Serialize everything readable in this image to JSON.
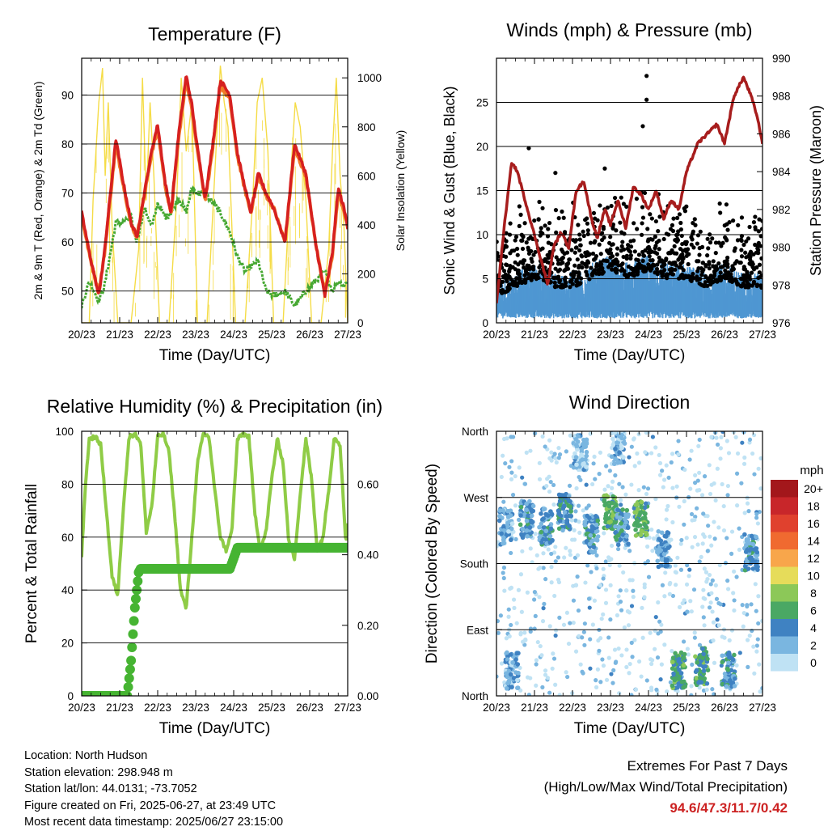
{
  "day_ticks": [
    "20/23",
    "21/23",
    "22/23",
    "23/23",
    "24/23",
    "25/23",
    "26/23",
    "27/23"
  ],
  "chart_data": [
    {
      "id": "temperature",
      "type": "line",
      "title": "Temperature (F)",
      "xlabel": "Time (Day/UTC)",
      "ylabel": "2m & 9m T (Red, Orange) & 2m Td (Green)",
      "y2label": "Solar Insolation (Yellow)",
      "ylim": [
        43.5,
        97.5
      ],
      "yticks": [
        50,
        60,
        70,
        80,
        90
      ],
      "y2lim": [
        0,
        1080
      ],
      "y2ticks": [
        0,
        200,
        400,
        600,
        800,
        1000
      ],
      "x": [
        0,
        0.2,
        0.45,
        0.6,
        0.9,
        1.1,
        1.3,
        1.45,
        1.65,
        1.85,
        2.0,
        2.2,
        2.35,
        2.55,
        2.75,
        2.9,
        3.05,
        3.25,
        3.45,
        3.65,
        3.9,
        4.1,
        4.3,
        4.45,
        4.65,
        4.85,
        5.05,
        5.35,
        5.6,
        5.9,
        6.15,
        6.4,
        6.6,
        6.75,
        6.9,
        7.0
      ],
      "series": [
        {
          "name": "2m T",
          "color": "#d62020",
          "values": [
            66,
            58,
            49,
            58,
            81,
            72,
            64,
            61,
            70,
            79,
            84,
            72,
            66,
            82,
            94,
            88,
            79,
            69,
            80,
            93,
            90,
            78,
            71,
            66,
            74,
            70,
            67,
            60,
            80,
            74,
            60,
            49,
            58,
            71,
            67,
            63
          ]
        },
        {
          "name": "9m T",
          "color": "#f07a28",
          "values": [
            65.5,
            57.5,
            49.5,
            57.5,
            80,
            71.5,
            63.5,
            61,
            69.5,
            78.5,
            83,
            71.5,
            65.5,
            81,
            93,
            87,
            78.5,
            68.5,
            79,
            92,
            89,
            77.5,
            70.5,
            66,
            73.5,
            69.5,
            67,
            60,
            79,
            73.5,
            60,
            49.5,
            57.5,
            70,
            66.5,
            63
          ]
        },
        {
          "name": "2m Td",
          "color": "#46a832",
          "values": [
            47,
            52,
            48,
            51,
            64,
            64,
            65,
            60,
            67,
            63,
            68,
            65,
            66,
            69,
            66,
            71,
            70,
            70,
            68,
            66,
            62,
            57,
            54,
            55,
            56,
            50,
            49,
            50,
            47,
            50,
            52,
            54,
            50,
            52,
            51,
            52
          ]
        },
        {
          "name": "Solar Insolation",
          "color": "#f5dc46",
          "axis": "y2",
          "x": [
            0,
            0.2,
            0.3,
            0.45,
            0.55,
            0.62,
            0.7,
            0.8,
            0.95,
            1.05,
            1.3,
            1.5,
            1.6,
            1.7,
            1.8,
            1.9,
            2.05,
            2.3,
            2.5,
            2.62,
            2.75,
            2.9,
            3.05,
            3.3,
            3.5,
            3.65,
            3.75,
            3.85,
            4.05,
            4.3,
            4.5,
            4.62,
            4.75,
            4.9,
            5.05,
            5.3,
            5.5,
            5.62,
            5.75,
            5.9,
            6.05,
            6.3,
            6.5,
            6.6,
            6.7,
            6.8,
            6.9,
            7.0
          ],
          "values": [
            0,
            0,
            500,
            900,
            1040,
            600,
            900,
            400,
            0,
            0,
            0,
            300,
            1000,
            500,
            900,
            600,
            0,
            0,
            500,
            1000,
            700,
            900,
            0,
            0,
            600,
            1050,
            900,
            800,
            0,
            0,
            500,
            900,
            1000,
            700,
            0,
            0,
            600,
            900,
            800,
            500,
            0,
            0,
            300,
            700,
            1000,
            600,
            400,
            0
          ]
        }
      ]
    },
    {
      "id": "winds",
      "type": "scatter",
      "title": "Winds (mph) & Pressure (mb)",
      "xlabel": "Time (Day/UTC)",
      "ylabel": "Sonic Wind & Gust (Blue, Black)",
      "y2label": "Station Pressure (Maroon)",
      "ylim": [
        0,
        30
      ],
      "yticks": [
        0,
        5,
        10,
        15,
        20,
        25
      ],
      "y2lim": [
        976,
        990
      ],
      "y2ticks": [
        976,
        978,
        980,
        982,
        984,
        986,
        988,
        990
      ],
      "wind_color": "#4f97d2",
      "gust_color": "#000000",
      "pressure": {
        "color": "#a71d1d",
        "x": [
          0,
          0.2,
          0.4,
          0.55,
          0.75,
          0.95,
          1.15,
          1.35,
          1.5,
          1.7,
          1.9,
          2.1,
          2.3,
          2.5,
          2.65,
          2.85,
          3.0,
          3.2,
          3.4,
          3.6,
          3.8,
          4.0,
          4.2,
          4.4,
          4.6,
          4.8,
          5.0,
          5.3,
          5.55,
          5.8,
          6.0,
          6.25,
          6.5,
          6.7,
          6.85,
          7.0
        ],
        "values": [
          977,
          981,
          984.5,
          984,
          982.5,
          981,
          979.5,
          978,
          980,
          980.8,
          980,
          983,
          983.5,
          981.5,
          980.5,
          982,
          981.2,
          982.5,
          981,
          983.2,
          982.8,
          982,
          983,
          981.5,
          982.5,
          982,
          984,
          985.5,
          986,
          986.5,
          985.5,
          988,
          989,
          988,
          987,
          985.5
        ]
      },
      "wind_mean": {
        "x": [
          0,
          0.5,
          1.0,
          1.5,
          2.0,
          2.5,
          3.0,
          3.5,
          4.0,
          4.5,
          5.0,
          5.5,
          6.0,
          6.5,
          7.0
        ],
        "values": [
          2,
          3,
          4,
          3,
          3,
          4,
          5,
          4,
          5,
          4,
          4,
          3,
          4,
          3,
          3
        ]
      },
      "gust_peaks": [
        {
          "x": 3.95,
          "y": 28.0
        },
        {
          "x": 3.95,
          "y": 25.3
        },
        {
          "x": 3.85,
          "y": 22.3
        },
        {
          "x": 0.85,
          "y": 19.8
        },
        {
          "x": 1.55,
          "y": 17.0
        },
        {
          "x": 2.85,
          "y": 17.5
        }
      ]
    },
    {
      "id": "humidity",
      "type": "line",
      "title": "Relative Humidity (%) & Precipitation (in)",
      "xlabel": "Time (Day/UTC)",
      "ylabel": "Percent & Total Rainfall",
      "ylim": [
        0,
        100
      ],
      "yticks": [
        0,
        20,
        40,
        60,
        80,
        100
      ],
      "y2lim": [
        0,
        0.75
      ],
      "y2ticks": [
        "0.00",
        "0.20",
        "0.40",
        "0.60"
      ],
      "y2tick_values": [
        0,
        0.2,
        0.4,
        0.6
      ],
      "series": [
        {
          "name": "Relative Humidity",
          "color": "#8fcc46",
          "x": [
            0,
            0.1,
            0.2,
            0.35,
            0.5,
            0.65,
            0.8,
            0.95,
            1.1,
            1.25,
            1.4,
            1.55,
            1.7,
            1.85,
            2.0,
            2.15,
            2.3,
            2.45,
            2.6,
            2.75,
            2.9,
            3.05,
            3.2,
            3.35,
            3.5,
            3.65,
            3.8,
            3.95,
            4.1,
            4.25,
            4.4,
            4.55,
            4.7,
            4.85,
            5.0,
            5.15,
            5.3,
            5.45,
            5.6,
            5.75,
            5.9,
            6.05,
            6.2,
            6.35,
            6.5,
            6.65,
            6.8,
            6.95,
            7.0
          ],
          "values": [
            53,
            80,
            97,
            98,
            95,
            70,
            45,
            38,
            72,
            98,
            99,
            96,
            62,
            72,
            98,
            99,
            92,
            68,
            40,
            33,
            60,
            88,
            99,
            98,
            78,
            60,
            55,
            62,
            97,
            99,
            98,
            70,
            55,
            62,
            82,
            97,
            88,
            58,
            52,
            76,
            97,
            82,
            55,
            60,
            78,
            98,
            95,
            58,
            65
          ]
        },
        {
          "name": "Total Precipitation",
          "color": "#46b432",
          "axis": "y2",
          "x": [
            0,
            1.2,
            1.3,
            1.4,
            1.5,
            1.55,
            1.7,
            3.9,
            4.0,
            4.1,
            5.0,
            7.0
          ],
          "values": [
            0,
            0,
            0.1,
            0.25,
            0.35,
            0.36,
            0.36,
            0.36,
            0.39,
            0.42,
            0.42,
            0.42
          ]
        }
      ]
    },
    {
      "id": "wind_direction",
      "type": "scatter",
      "title": "Wind Direction",
      "xlabel": "Time (Day/UTC)",
      "ylabel": "Direction (Colored By Speed)",
      "yticks": [
        "North",
        "East",
        "South",
        "West",
        "North"
      ],
      "ytick_values": [
        0,
        90,
        180,
        270,
        360
      ],
      "ylim": [
        0,
        360
      ],
      "colorbar": {
        "unit": "mph",
        "labels": [
          "20+",
          "18",
          "16",
          "14",
          "12",
          "10",
          "8",
          "6",
          "4",
          "2",
          "0"
        ],
        "colors": [
          "#a3171b",
          "#c8262a",
          "#e0412e",
          "#f06a30",
          "#f8a64b",
          "#e6dc5a",
          "#8cc858",
          "#4aa864",
          "#3f82c2",
          "#7ab6e0",
          "#bfe2f4"
        ]
      },
      "clusters": [
        {
          "t": 0.25,
          "dir": 230,
          "speed": 3
        },
        {
          "t": 0.8,
          "dir": 240,
          "speed": 4
        },
        {
          "t": 1.3,
          "dir": 230,
          "speed": 4
        },
        {
          "t": 1.8,
          "dir": 250,
          "speed": 5
        },
        {
          "t": 2.5,
          "dir": 220,
          "speed": 4
        },
        {
          "t": 3.0,
          "dir": 250,
          "speed": 7
        },
        {
          "t": 3.3,
          "dir": 230,
          "speed": 4
        },
        {
          "t": 3.8,
          "dir": 240,
          "speed": 7
        },
        {
          "t": 4.4,
          "dir": 200,
          "speed": 3
        },
        {
          "t": 4.8,
          "dir": 35,
          "speed": 6
        },
        {
          "t": 5.4,
          "dir": 40,
          "speed": 6
        },
        {
          "t": 6.1,
          "dir": 35,
          "speed": 4
        },
        {
          "t": 6.7,
          "dir": 195,
          "speed": 4
        },
        {
          "t": 0.4,
          "dir": 35,
          "speed": 3
        },
        {
          "t": 2.2,
          "dir": 330,
          "speed": 2
        },
        {
          "t": 3.2,
          "dir": 340,
          "speed": 2
        }
      ]
    }
  ],
  "footer": {
    "location": "Location: North Hudson",
    "elevation": "Station elevation: 298.948 m",
    "latlon": "Station lat/lon: 44.0131; -73.7052",
    "created": "Figure created on Fri, 2025-06-27, at 23:49 UTC",
    "latest": "Most recent data timestamp: 2025/06/27 23:15:00"
  },
  "extremes": {
    "title": "Extremes For Past 7 Days",
    "subtitle": "(High/Low/Max Wind/Total Precipitation)",
    "values": "94.6/47.3/11.7/0.42"
  }
}
